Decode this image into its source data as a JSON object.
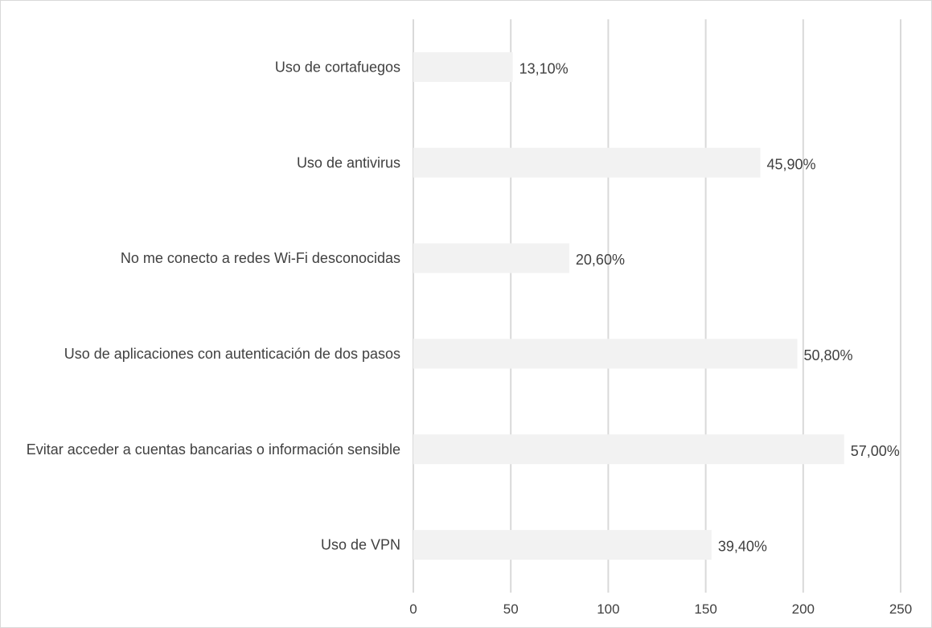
{
  "chart_data": {
    "type": "bar",
    "orientation": "horizontal",
    "categories": [
      "Uso de cortafuegos",
      "Uso de antivirus",
      "No me conecto a redes Wi-Fi desconocidas",
      "Uso de aplicaciones con autenticación de dos pasos",
      "Evitar acceder a cuentas bancarias o información sensible",
      "Uso de VPN"
    ],
    "values": [
      51,
      178,
      80,
      197,
      221,
      153
    ],
    "data_labels": [
      "13,10%",
      "45,90%",
      "20,60%",
      "50,80%",
      "57,00%",
      "39,40%"
    ],
    "xlim": [
      0,
      250
    ],
    "xticks": [
      "0",
      "50",
      "100",
      "150",
      "200",
      "250"
    ],
    "grid": "vertical",
    "legend": "none",
    "colors": {
      "bar": "#f2f2f2",
      "grid": "#d9d9d9",
      "text": "#404040"
    }
  }
}
